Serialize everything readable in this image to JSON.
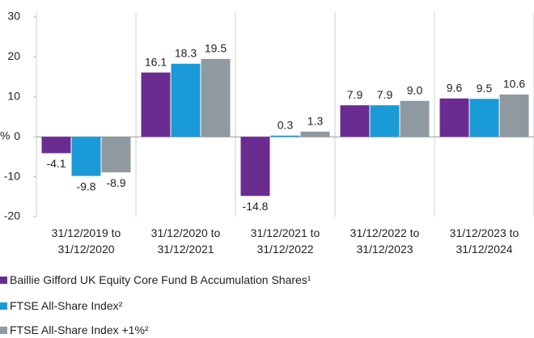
{
  "chart_data": {
    "type": "bar",
    "y_label": "%",
    "categories": [
      "31/12/2019 to\n31/12/2020",
      "31/12/2020 to\n31/12/2021",
      "31/12/2021 to\n31/12/2022",
      "31/12/2022 to\n31/12/2023",
      "31/12/2023 to\n31/12/2024"
    ],
    "series": [
      {
        "name": "Baillie Gifford UK Equity Core Fund B Accumulation Shares¹",
        "color": "#6a2c91",
        "values": [
          -4.1,
          16.1,
          -14.8,
          7.9,
          9.6
        ],
        "value_labels": [
          "-4.1",
          "16.1",
          "-14.8",
          "7.9",
          "9.6"
        ]
      },
      {
        "name": "FTSE All-Share Index²",
        "color": "#1a9ad6",
        "values": [
          -9.8,
          18.3,
          0.3,
          7.9,
          9.5
        ],
        "value_labels": [
          "-9.8",
          "18.3",
          "0.3",
          "7.9",
          "9.5"
        ]
      },
      {
        "name": "FTSE All-Share Index +1%²",
        "color": "#8f9aa0",
        "values": [
          -8.9,
          19.5,
          1.3,
          9.0,
          10.6
        ],
        "value_labels": [
          "-8.9",
          "19.5",
          "1.3",
          "9.0",
          "10.6"
        ]
      }
    ],
    "ylim": [
      -20,
      30
    ],
    "yticks": [
      -20,
      -10,
      0,
      10,
      20,
      30
    ]
  }
}
